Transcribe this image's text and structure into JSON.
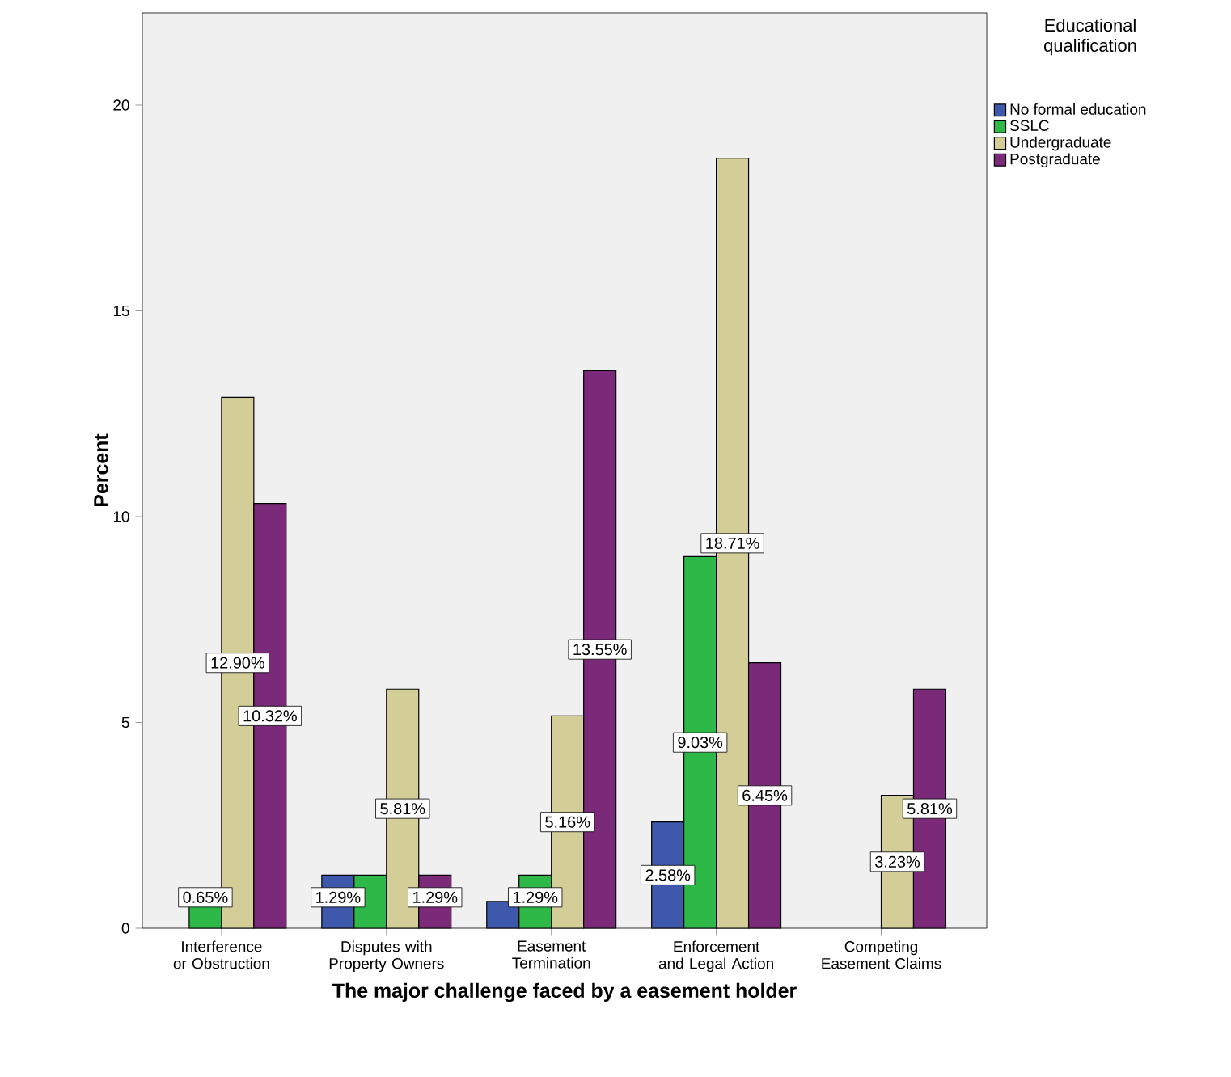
{
  "chart_data": {
    "type": "bar",
    "xlabel": "The major challenge faced by a easement holder",
    "ylabel": "Percent",
    "legend_title": "Educational qualification",
    "categories": [
      "Interference or Obstruction",
      "Disputes with Property Owners",
      "Easement Termination",
      "Enforcement and Legal Action",
      "Competing Easement Claims"
    ],
    "series": [
      {
        "name": "No formal education",
        "color": "#3e58ac",
        "values": [
          null,
          1.29,
          0.65,
          2.58,
          null
        ],
        "value_labels": [
          null,
          "1.29%",
          null,
          "2.58%",
          null
        ]
      },
      {
        "name": "SSLC",
        "color": "#2eb848",
        "values": [
          0.65,
          1.29,
          1.29,
          9.03,
          null
        ],
        "value_labels": [
          "0.65%",
          null,
          "1.29%",
          "9.03%",
          null
        ]
      },
      {
        "name": "Undergraduate",
        "color": "#d3ce97",
        "values": [
          12.9,
          5.81,
          5.16,
          18.71,
          3.23
        ],
        "value_labels": [
          "12.90%",
          "5.81%",
          "5.16%",
          "18.71%",
          "3.23%"
        ]
      },
      {
        "name": "Postgraduate",
        "color": "#7b2a7a",
        "values": [
          10.32,
          1.29,
          13.55,
          6.45,
          5.81
        ],
        "value_labels": [
          "10.32%",
          "1.29%",
          "13.55%",
          "6.45%",
          "5.81%"
        ]
      }
    ],
    "ylim": [
      0,
      22.24
    ],
    "yticks": [
      0,
      5,
      10,
      15,
      20
    ],
    "grid": false,
    "legend": "top right"
  }
}
